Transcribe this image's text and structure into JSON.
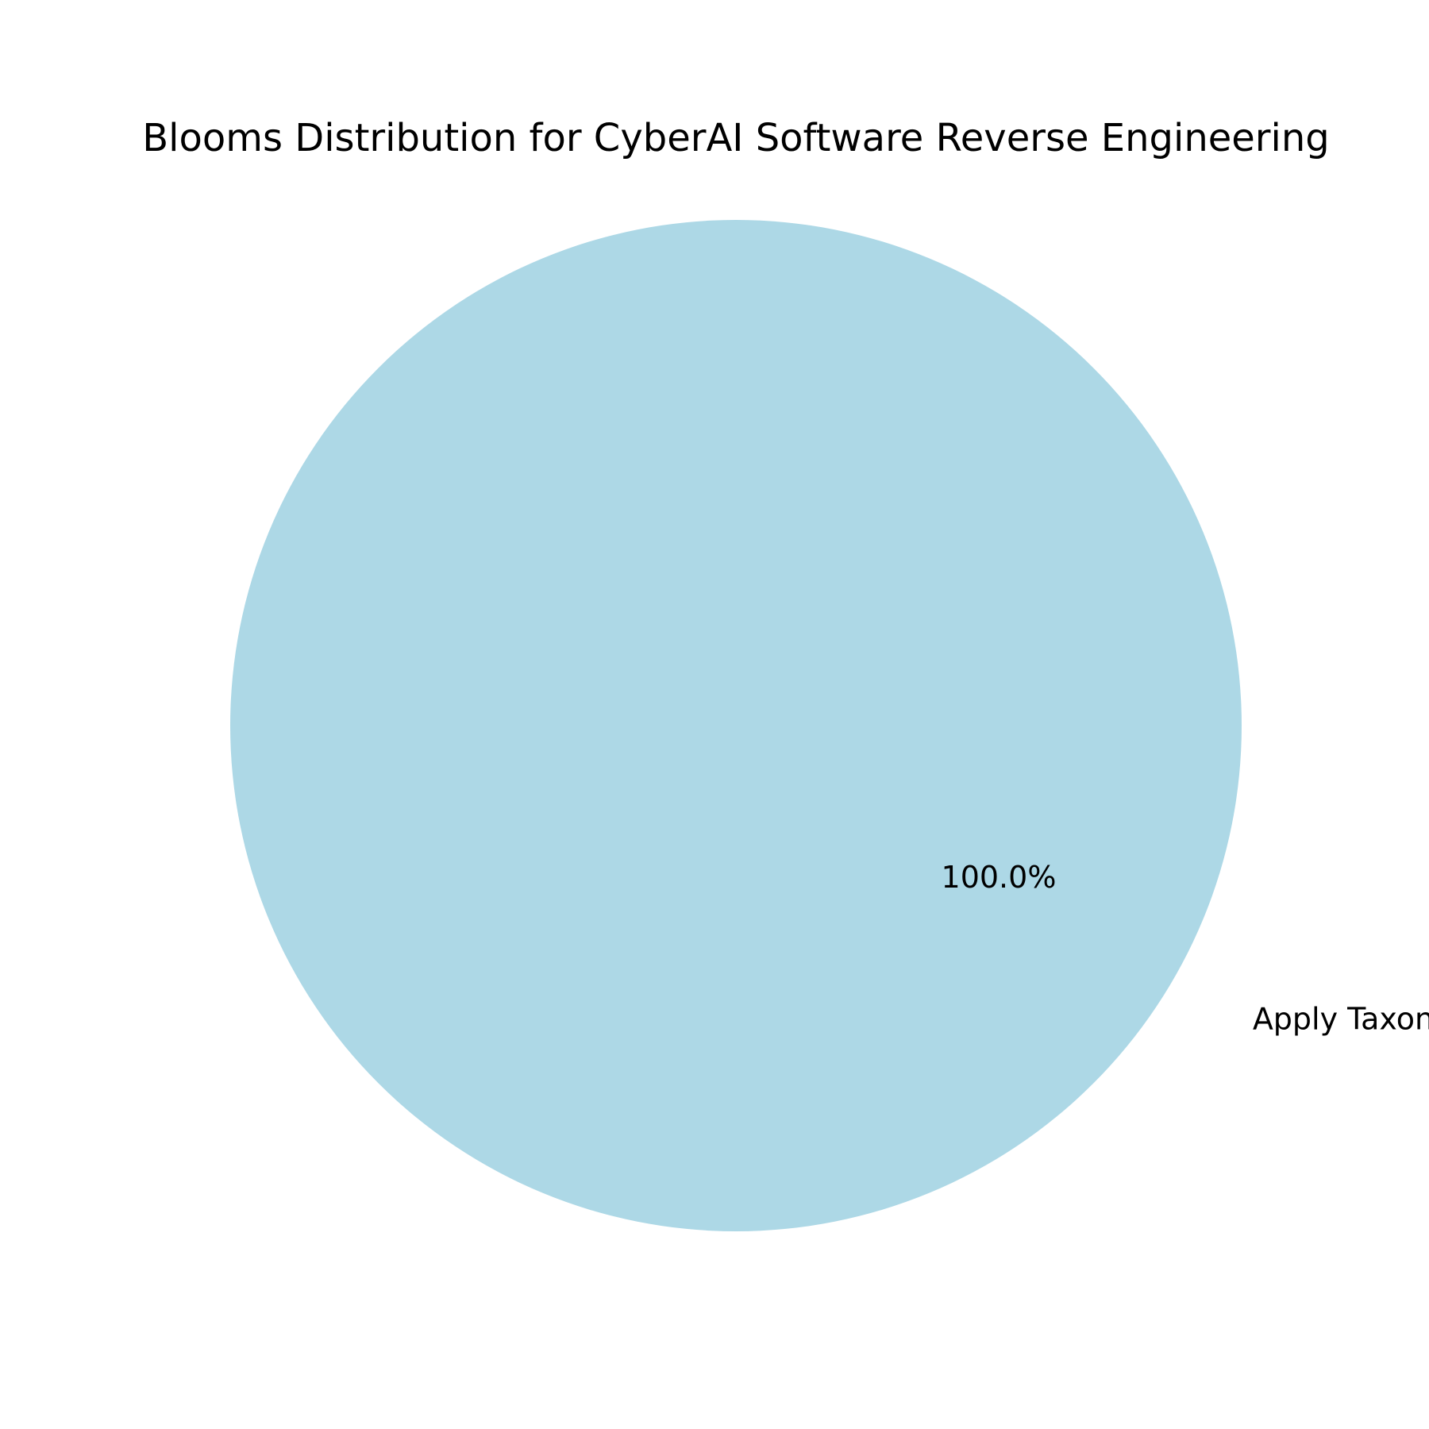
{
  "chart_data": {
    "type": "pie",
    "title": "Blooms Distribution for CyberAI Software Reverse Engineering",
    "slices": [
      {
        "label": "Apply Taxon",
        "value": 100.0,
        "percent_label": "100.0%",
        "color": "#add8e6"
      }
    ]
  }
}
